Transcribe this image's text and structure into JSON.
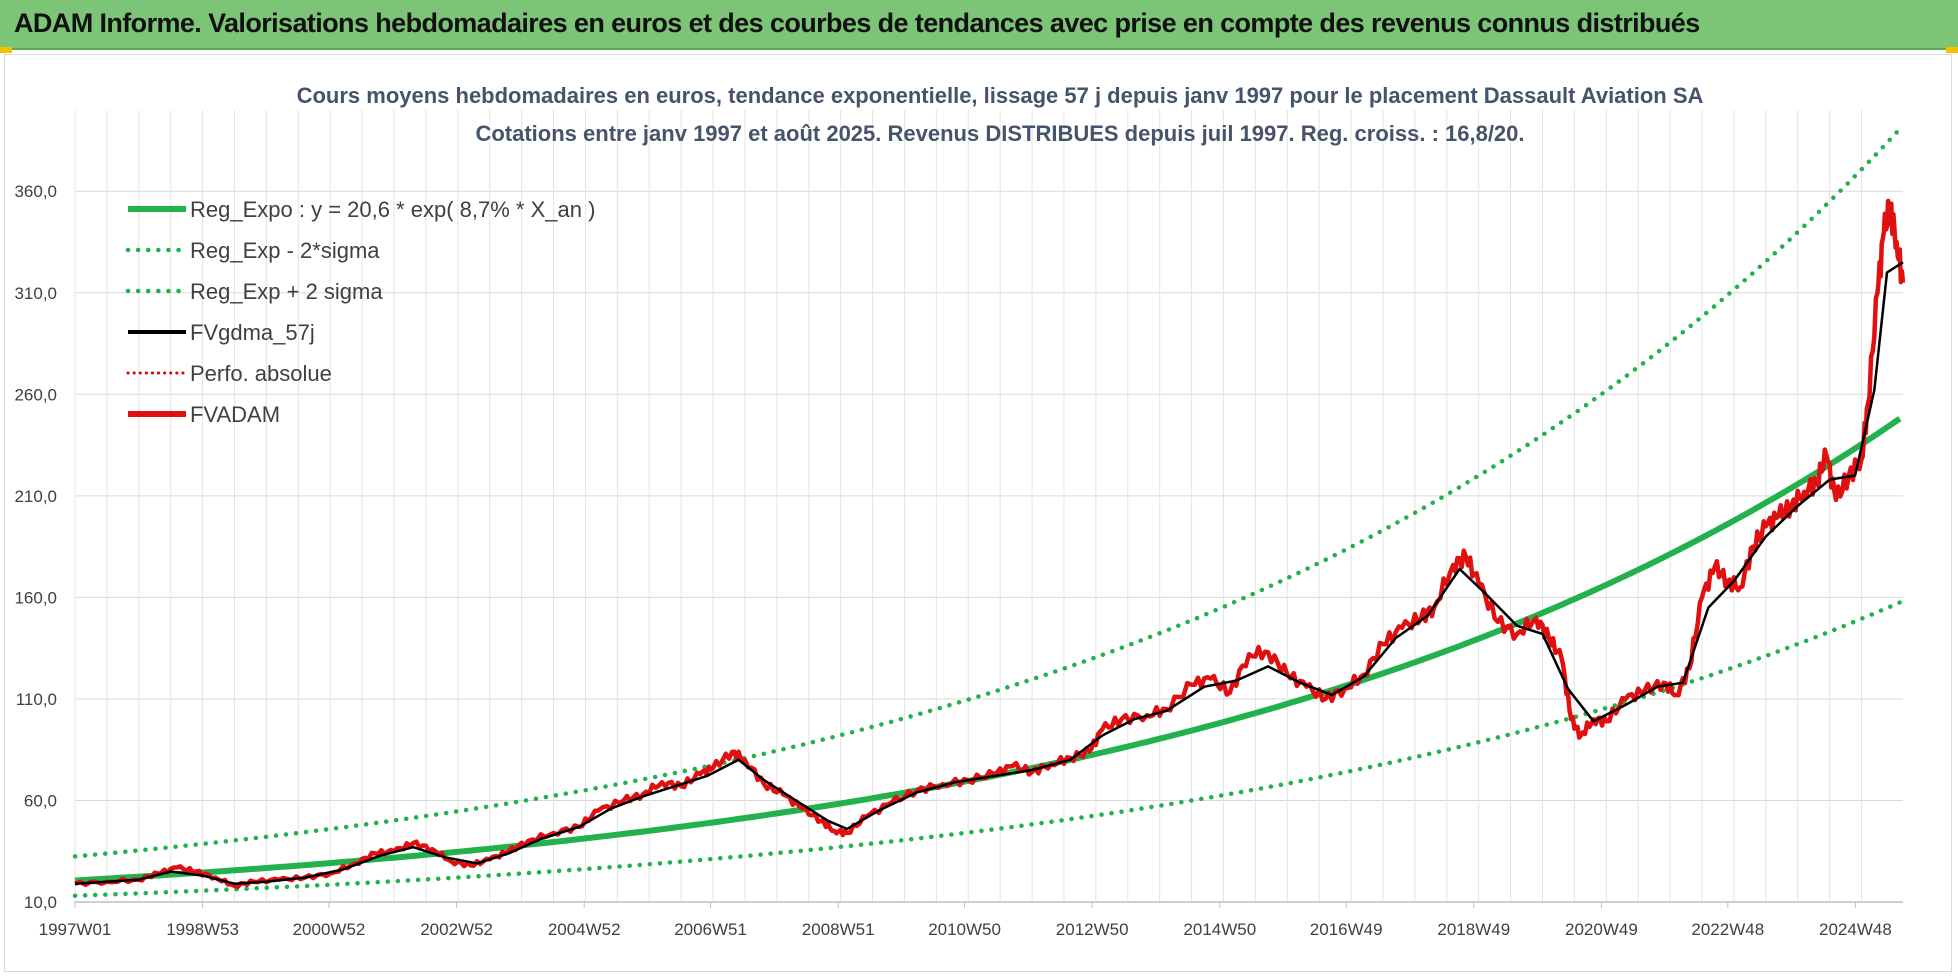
{
  "header": {
    "title": "ADAM Informe. Valorisations hebdomadaires en euros et des courbes de tendances avec prise en compte des revenus connus distribués"
  },
  "chart_data": {
    "type": "line",
    "title_line1": "Cours moyens hebdomadaires en euros, tendance exponentielle, lissage 57 j depuis janv 1997 pour le placement Dassault Aviation SA",
    "title_line2": "Cotations entre janv 1997 et août 2025.  Revenus DISTRIBUES depuis juil 1997.  Reg. croiss. : 16,8/20.",
    "xlabel": "",
    "ylabel": "",
    "x_ticks": [
      "1997W01",
      "1998W53",
      "2000W52",
      "2002W52",
      "2004W52",
      "2006W51",
      "2008W51",
      "2010W50",
      "2012W50",
      "2014W50",
      "2016W49",
      "2018W49",
      "2020W49",
      "2022W48",
      "2024W48"
    ],
    "y_ticks": [
      "10,0",
      "60,0",
      "110,0",
      "160,0",
      "210,0",
      "260,0",
      "310,0",
      "360,0"
    ],
    "xlim": [
      1997.0,
      2025.65
    ],
    "ylim": [
      10,
      400
    ],
    "grid": true,
    "legend_position": "top-left",
    "regression": {
      "a": 20.6,
      "rate": 0.087,
      "sigma_factor_low": 0.635,
      "sigma_factor_high": 1.575
    },
    "series": [
      {
        "name": "Reg_Expo : y = 20,6 * exp( 8,7% *  X_an )",
        "color": "#22b14c",
        "style": "solid-thick",
        "kind": "reg"
      },
      {
        "name": "Reg_Exp - 2*sigma",
        "color": "#22b14c",
        "style": "dotted",
        "kind": "reg_low"
      },
      {
        "name": "Reg_Exp + 2 sigma",
        "color": "#22b14c",
        "style": "dotted",
        "kind": "reg_high"
      },
      {
        "name": "FVgdma_57j",
        "color": "#000000",
        "style": "solid",
        "kind": "smooth"
      },
      {
        "name": "Perfo. absolue",
        "color": "#e00000",
        "style": "dotted-thin",
        "kind": "none"
      },
      {
        "name": "FVADAM",
        "color": "#e01010",
        "style": "solid-thick",
        "kind": "price"
      }
    ],
    "price_points": [
      [
        1997.0,
        19
      ],
      [
        1997.5,
        20
      ],
      [
        1998.0,
        21
      ],
      [
        1998.3,
        24
      ],
      [
        1998.6,
        27
      ],
      [
        1998.9,
        25
      ],
      [
        1999.2,
        22
      ],
      [
        1999.5,
        18
      ],
      [
        1999.8,
        20
      ],
      [
        2000.2,
        21
      ],
      [
        2000.6,
        22
      ],
      [
        2001.0,
        24
      ],
      [
        2001.4,
        29
      ],
      [
        2001.7,
        34
      ],
      [
        2002.0,
        35
      ],
      [
        2002.3,
        39
      ],
      [
        2002.6,
        36
      ],
      [
        2002.9,
        30
      ],
      [
        2003.2,
        28
      ],
      [
        2003.5,
        31
      ],
      [
        2003.8,
        35
      ],
      [
        2004.1,
        40
      ],
      [
        2004.5,
        44
      ],
      [
        2004.9,
        47
      ],
      [
        2005.2,
        55
      ],
      [
        2005.6,
        60
      ],
      [
        2005.9,
        63
      ],
      [
        2006.2,
        69
      ],
      [
        2006.5,
        67
      ],
      [
        2006.8,
        73
      ],
      [
        2007.0,
        76
      ],
      [
        2007.3,
        84
      ],
      [
        2007.5,
        80
      ],
      [
        2007.8,
        68
      ],
      [
        2008.1,
        63
      ],
      [
        2008.4,
        56
      ],
      [
        2008.7,
        50
      ],
      [
        2008.9,
        45
      ],
      [
        2009.1,
        44
      ],
      [
        2009.4,
        52
      ],
      [
        2009.8,
        59
      ],
      [
        2010.2,
        65
      ],
      [
        2010.6,
        68
      ],
      [
        2011.0,
        70
      ],
      [
        2011.4,
        73
      ],
      [
        2011.7,
        77
      ],
      [
        2012.0,
        74
      ],
      [
        2012.3,
        78
      ],
      [
        2012.6,
        81
      ],
      [
        2012.9,
        84
      ],
      [
        2013.1,
        95
      ],
      [
        2013.4,
        100
      ],
      [
        2013.8,
        102
      ],
      [
        2014.1,
        105
      ],
      [
        2014.5,
        117
      ],
      [
        2014.8,
        120
      ],
      [
        2015.1,
        113
      ],
      [
        2015.4,
        132
      ],
      [
        2015.7,
        133
      ],
      [
        2016.0,
        122
      ],
      [
        2016.3,
        116
      ],
      [
        2016.6,
        110
      ],
      [
        2016.9,
        115
      ],
      [
        2017.2,
        122
      ],
      [
        2017.5,
        137
      ],
      [
        2017.8,
        145
      ],
      [
        2018.1,
        150
      ],
      [
        2018.3,
        155
      ],
      [
        2018.6,
        176
      ],
      [
        2018.8,
        180
      ],
      [
        2019.0,
        167
      ],
      [
        2019.3,
        148
      ],
      [
        2019.6,
        142
      ],
      [
        2019.9,
        150
      ],
      [
        2020.1,
        140
      ],
      [
        2020.3,
        130
      ],
      [
        2020.45,
        100
      ],
      [
        2020.6,
        92
      ],
      [
        2020.8,
        100
      ],
      [
        2021.0,
        99
      ],
      [
        2021.3,
        110
      ],
      [
        2021.6,
        114
      ],
      [
        2021.9,
        118
      ],
      [
        2022.1,
        112
      ],
      [
        2022.3,
        125
      ],
      [
        2022.5,
        160
      ],
      [
        2022.7,
        175
      ],
      [
        2022.9,
        168
      ],
      [
        2023.1,
        165
      ],
      [
        2023.3,
        185
      ],
      [
        2023.5,
        195
      ],
      [
        2023.7,
        200
      ],
      [
        2023.9,
        205
      ],
      [
        2024.1,
        212
      ],
      [
        2024.3,
        217
      ],
      [
        2024.45,
        230
      ],
      [
        2024.6,
        208
      ],
      [
        2024.8,
        220
      ],
      [
        2025.0,
        228
      ],
      [
        2025.1,
        255
      ],
      [
        2025.25,
        310
      ],
      [
        2025.35,
        340
      ],
      [
        2025.45,
        352
      ],
      [
        2025.55,
        335
      ],
      [
        2025.65,
        315
      ]
    ],
    "smooth_points": [
      [
        1997.0,
        19
      ],
      [
        1997.5,
        20
      ],
      [
        1998.0,
        21
      ],
      [
        1998.5,
        25
      ],
      [
        1999.0,
        23
      ],
      [
        1999.5,
        19
      ],
      [
        2000.0,
        20
      ],
      [
        2000.6,
        22
      ],
      [
        2001.2,
        26
      ],
      [
        2001.8,
        33
      ],
      [
        2002.3,
        37
      ],
      [
        2002.8,
        32
      ],
      [
        2003.3,
        29
      ],
      [
        2003.8,
        34
      ],
      [
        2004.3,
        41
      ],
      [
        2004.9,
        47
      ],
      [
        2005.4,
        56
      ],
      [
        2005.9,
        62
      ],
      [
        2006.4,
        67
      ],
      [
        2006.9,
        72
      ],
      [
        2007.4,
        80
      ],
      [
        2007.8,
        70
      ],
      [
        2008.3,
        60
      ],
      [
        2008.8,
        50
      ],
      [
        2009.1,
        46
      ],
      [
        2009.6,
        55
      ],
      [
        2010.2,
        64
      ],
      [
        2010.8,
        69
      ],
      [
        2011.4,
        72
      ],
      [
        2012.0,
        75
      ],
      [
        2012.6,
        80
      ],
      [
        2013.1,
        92
      ],
      [
        2013.6,
        100
      ],
      [
        2014.1,
        104
      ],
      [
        2014.7,
        116
      ],
      [
        2015.2,
        119
      ],
      [
        2015.7,
        126
      ],
      [
        2016.2,
        118
      ],
      [
        2016.7,
        112
      ],
      [
        2017.2,
        121
      ],
      [
        2017.7,
        140
      ],
      [
        2018.2,
        151
      ],
      [
        2018.7,
        174
      ],
      [
        2019.1,
        162
      ],
      [
        2019.6,
        146
      ],
      [
        2020.0,
        142
      ],
      [
        2020.4,
        115
      ],
      [
        2020.8,
        99
      ],
      [
        2021.3,
        107
      ],
      [
        2021.8,
        116
      ],
      [
        2022.2,
        118
      ],
      [
        2022.6,
        155
      ],
      [
        2023.0,
        168
      ],
      [
        2023.5,
        190
      ],
      [
        2024.0,
        205
      ],
      [
        2024.5,
        218
      ],
      [
        2024.9,
        220
      ],
      [
        2025.2,
        262
      ],
      [
        2025.4,
        320
      ],
      [
        2025.65,
        325
      ]
    ]
  }
}
